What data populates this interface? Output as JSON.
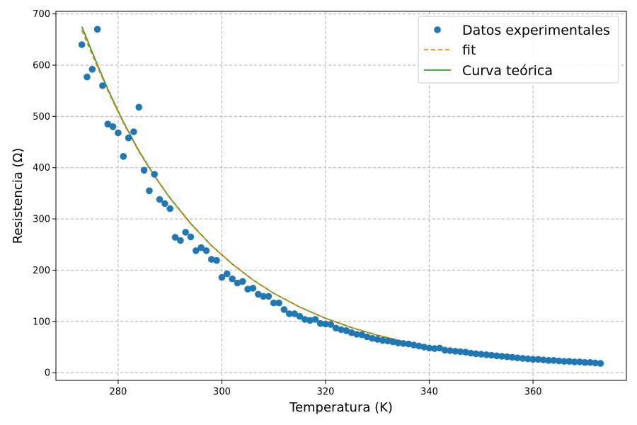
{
  "chart_data": {
    "type": "scatter",
    "xlabel": "Temperatura (K)",
    "ylabel": "Resistencia (Ω)",
    "xlim": [
      268,
      378
    ],
    "ylim": [
      -15,
      705
    ],
    "x_ticks": [
      280,
      300,
      320,
      340,
      360
    ],
    "y_ticks": [
      0,
      100,
      200,
      300,
      400,
      500,
      600,
      700
    ],
    "grid": true,
    "legend": {
      "placement": "top-right",
      "entries": [
        "Datos experimentales",
        "fit",
        "Curva teórica"
      ]
    },
    "colors": {
      "points": "#1f77b4",
      "fit": "#ff7f0e",
      "theory": "#2ca02c",
      "grid": "#b0b0b0"
    },
    "series": [
      {
        "name": "Datos experimentales",
        "kind": "points",
        "points": [
          [
            273,
            640
          ],
          [
            274,
            577
          ],
          [
            275,
            592
          ],
          [
            276,
            670
          ],
          [
            277,
            560
          ],
          [
            278,
            485
          ],
          [
            279,
            480
          ],
          [
            280,
            468
          ],
          [
            281,
            422
          ],
          [
            282,
            458
          ],
          [
            283,
            470
          ],
          [
            284,
            518
          ],
          [
            285,
            395
          ],
          [
            286,
            355
          ],
          [
            287,
            387
          ],
          [
            288,
            338
          ],
          [
            289,
            330
          ],
          [
            290,
            320
          ],
          [
            291,
            264
          ],
          [
            292,
            258
          ],
          [
            293,
            274
          ],
          [
            294,
            265
          ],
          [
            295,
            238
          ],
          [
            296,
            244
          ],
          [
            297,
            238
          ],
          [
            298,
            221
          ],
          [
            299,
            219
          ],
          [
            300,
            186
          ],
          [
            301,
            193
          ],
          [
            302,
            183
          ],
          [
            303,
            175
          ],
          [
            304,
            178
          ],
          [
            305,
            163
          ],
          [
            306,
            165
          ],
          [
            307,
            153
          ],
          [
            308,
            149
          ],
          [
            309,
            149
          ],
          [
            310,
            136
          ],
          [
            311,
            136
          ],
          [
            312,
            123
          ],
          [
            313,
            115
          ],
          [
            314,
            115
          ],
          [
            315,
            110
          ],
          [
            316,
            104
          ],
          [
            317,
            102
          ],
          [
            318,
            104
          ],
          [
            319,
            96
          ],
          [
            320,
            95
          ],
          [
            321,
            94
          ],
          [
            322,
            87
          ],
          [
            323,
            84
          ],
          [
            324,
            82
          ],
          [
            325,
            78
          ],
          [
            326,
            75
          ],
          [
            327,
            74
          ],
          [
            328,
            70
          ],
          [
            329,
            67
          ],
          [
            330,
            65
          ],
          [
            331,
            63
          ],
          [
            332,
            62
          ],
          [
            333,
            60
          ],
          [
            334,
            58
          ],
          [
            335,
            57
          ],
          [
            336,
            56
          ],
          [
            337,
            54
          ],
          [
            338,
            52
          ],
          [
            339,
            50
          ],
          [
            340,
            48
          ],
          [
            341,
            47
          ],
          [
            342,
            48
          ],
          [
            343,
            44
          ],
          [
            344,
            43
          ],
          [
            345,
            42
          ],
          [
            346,
            41
          ],
          [
            347,
            40
          ],
          [
            348,
            38
          ],
          [
            349,
            37
          ],
          [
            350,
            36
          ],
          [
            351,
            35
          ],
          [
            352,
            34
          ],
          [
            353,
            33
          ],
          [
            354,
            32
          ],
          [
            355,
            31
          ],
          [
            356,
            30
          ],
          [
            357,
            29
          ],
          [
            358,
            28
          ],
          [
            359,
            27
          ],
          [
            360,
            26
          ],
          [
            361,
            26
          ],
          [
            362,
            25
          ],
          [
            363,
            24
          ],
          [
            364,
            24
          ],
          [
            365,
            23
          ],
          [
            366,
            22
          ],
          [
            367,
            22
          ],
          [
            368,
            21
          ],
          [
            369,
            21
          ],
          [
            370,
            20
          ],
          [
            371,
            20
          ],
          [
            372,
            19
          ],
          [
            373,
            18
          ]
        ]
      },
      {
        "name": "fit",
        "kind": "line-dashed",
        "x": [
          273,
          275,
          278,
          281,
          284,
          287,
          290,
          294,
          298,
          302,
          306,
          310,
          315,
          320,
          325,
          330,
          335,
          340,
          345,
          350,
          355,
          360,
          365,
          373
        ],
        "y": [
          668,
          620,
          550,
          487,
          431,
          383,
          340,
          290,
          248,
          212,
          181,
          155,
          128,
          106,
          88,
          73,
          61,
          51,
          43,
          36,
          31,
          26,
          22,
          18
        ]
      },
      {
        "name": "Curva teórica",
        "kind": "line",
        "x": [
          273,
          275,
          278,
          281,
          284,
          287,
          290,
          294,
          298,
          302,
          306,
          310,
          315,
          320,
          325,
          330,
          335,
          340,
          345,
          350,
          355,
          360,
          365,
          373
        ],
        "y": [
          675,
          625,
          553,
          489,
          433,
          384,
          341,
          291,
          248,
          212,
          181,
          155,
          128,
          106,
          88,
          73,
          61,
          51,
          43,
          36,
          31,
          26,
          22,
          18
        ]
      }
    ]
  }
}
